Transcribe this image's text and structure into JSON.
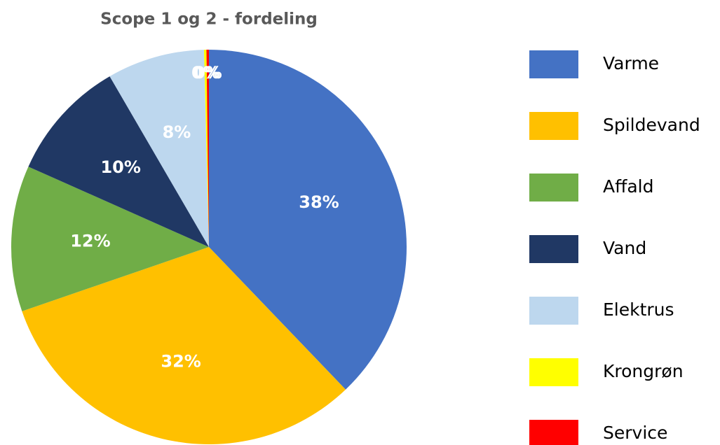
{
  "chart_data": {
    "type": "pie",
    "title": "Scope 1 og 2 - fordeling",
    "categories": [
      "Varme",
      "Spildevand",
      "Affald",
      "Vand",
      "Elektrus",
      "Krongrøn",
      "Service"
    ],
    "values": [
      38,
      32,
      12,
      10,
      8,
      0.2,
      0.2
    ],
    "value_labels": [
      "38%",
      "32%",
      "12%",
      "10%",
      "8%",
      "0%",
      "0%"
    ],
    "colors": [
      "#4472c4",
      "#ffc000",
      "#70ad47",
      "#203864",
      "#bdd7ee",
      "#ffff00",
      "#ff0000"
    ],
    "legend": "right"
  }
}
